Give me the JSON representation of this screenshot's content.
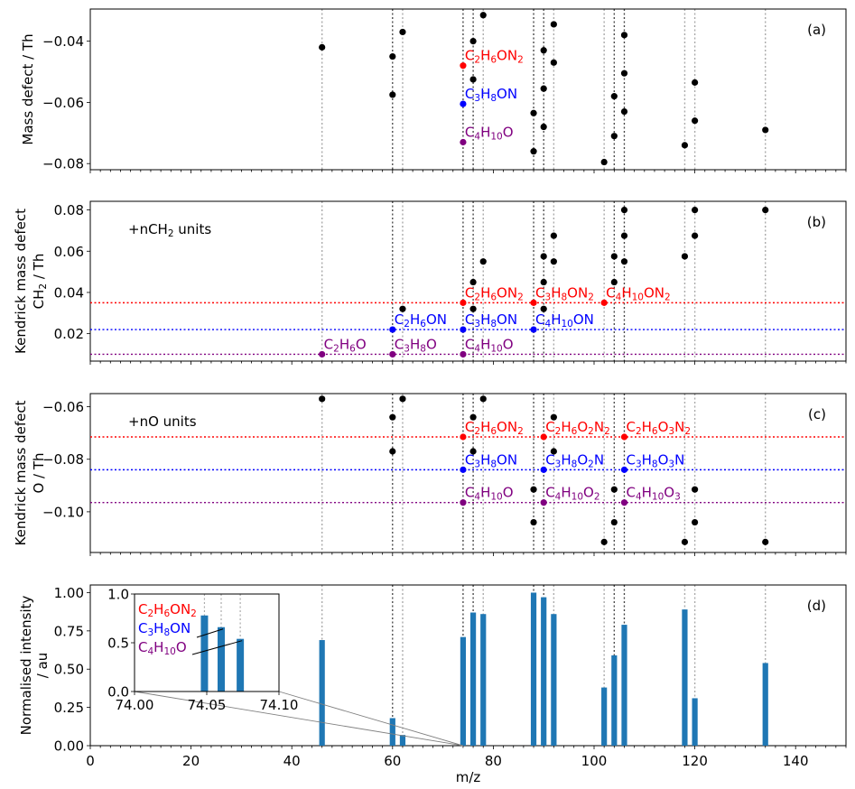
{
  "chart_data": [
    {
      "panel": "(a)",
      "type": "scatter",
      "ylabel": "Mass defect / Th",
      "yticks": [
        -0.04,
        -0.06,
        -0.08
      ],
      "ytick_labels": [
        "−0.04",
        "−0.06",
        "−0.08"
      ],
      "ylim": [
        -0.082,
        -0.0295
      ],
      "points": [
        [
          46,
          -0.042
        ],
        [
          60,
          -0.045
        ],
        [
          60,
          -0.0575
        ],
        [
          62,
          -0.037
        ],
        [
          74,
          -0.048
        ],
        [
          74,
          -0.0605
        ],
        [
          74,
          -0.073
        ],
        [
          76,
          -0.04
        ],
        [
          76,
          -0.0525
        ],
        [
          78,
          -0.0315
        ],
        [
          88,
          -0.0635
        ],
        [
          88,
          -0.076
        ],
        [
          90,
          -0.043
        ],
        [
          90,
          -0.0555
        ],
        [
          90,
          -0.068
        ],
        [
          92,
          -0.0345
        ],
        [
          92,
          -0.047
        ],
        [
          102,
          -0.0795
        ],
        [
          104,
          -0.058
        ],
        [
          104,
          -0.071
        ],
        [
          106,
          -0.038
        ],
        [
          106,
          -0.0505
        ],
        [
          106,
          -0.063
        ],
        [
          118,
          -0.074
        ],
        [
          120,
          -0.0535
        ],
        [
          120,
          -0.066
        ],
        [
          134,
          -0.069
        ]
      ],
      "labeled_points": [
        {
          "x": 74,
          "y": -0.048,
          "label": "C₂H₆ON₂",
          "color": "#ff0000"
        },
        {
          "x": 74,
          "y": -0.0605,
          "label": "C₃H₈ON",
          "color": "#0000ff"
        },
        {
          "x": 74,
          "y": -0.073,
          "label": "C₄H₁₀O",
          "color": "#800080"
        }
      ]
    },
    {
      "panel": "(b)",
      "type": "scatter",
      "ylabel_lines": [
        "Kendrick mass defect",
        "CH₂ / Th"
      ],
      "annotation": "+nCH₂ units",
      "yticks": [
        0.02,
        0.04,
        0.06,
        0.08
      ],
      "ytick_labels": [
        "0.02",
        "0.04",
        "0.06",
        "0.08"
      ],
      "ylim": [
        0.0067,
        0.0842
      ],
      "points": [
        [
          46,
          0.01
        ],
        [
          60,
          0.01
        ],
        [
          60,
          0.022
        ],
        [
          62,
          0.032
        ],
        [
          74,
          0.01
        ],
        [
          74,
          0.022
        ],
        [
          74,
          0.035
        ],
        [
          76,
          0.032
        ],
        [
          76,
          0.045
        ],
        [
          78,
          0.055
        ],
        [
          88,
          0.022
        ],
        [
          88,
          0.035
        ],
        [
          90,
          0.032
        ],
        [
          90,
          0.045
        ],
        [
          90,
          0.0575
        ],
        [
          92,
          0.055
        ],
        [
          92,
          0.0675
        ],
        [
          102,
          0.035
        ],
        [
          104,
          0.045
        ],
        [
          104,
          0.0575
        ],
        [
          106,
          0.055
        ],
        [
          106,
          0.0675
        ],
        [
          106,
          0.08
        ],
        [
          118,
          0.0575
        ],
        [
          120,
          0.0675
        ],
        [
          120,
          0.08
        ],
        [
          134,
          0.08
        ]
      ],
      "hlines": [
        {
          "y": 0.035,
          "color": "#ff0000"
        },
        {
          "y": 0.022,
          "color": "#0000ff"
        },
        {
          "y": 0.01,
          "color": "#800080"
        }
      ],
      "labeled_points": [
        {
          "x": 74,
          "y": 0.035,
          "label": "C₂H₆ON₂",
          "color": "#ff0000"
        },
        {
          "x": 88,
          "y": 0.035,
          "label": "C₃H₈ON₂",
          "color": "#ff0000"
        },
        {
          "x": 102,
          "y": 0.035,
          "label": "C₄H₁₀ON₂",
          "color": "#ff0000"
        },
        {
          "x": 60,
          "y": 0.022,
          "label": "C₂H₆ON",
          "color": "#0000ff"
        },
        {
          "x": 74,
          "y": 0.022,
          "label": "C₃H₈ON",
          "color": "#0000ff"
        },
        {
          "x": 88,
          "y": 0.022,
          "label": "C₄H₁₀ON",
          "color": "#0000ff"
        },
        {
          "x": 46,
          "y": 0.01,
          "label": "C₂H₆O",
          "color": "#800080"
        },
        {
          "x": 60,
          "y": 0.01,
          "label": "C₃H₈O",
          "color": "#800080"
        },
        {
          "x": 74,
          "y": 0.01,
          "label": "C₄H₁₀O",
          "color": "#800080"
        }
      ]
    },
    {
      "panel": "(c)",
      "type": "scatter",
      "ylabel_lines": [
        "Kendrick mass defect",
        "O / Th"
      ],
      "annotation": "+nO units",
      "yticks": [
        -0.06,
        -0.08,
        -0.1
      ],
      "ytick_labels": [
        "−0.06",
        "−0.08",
        "−0.10"
      ],
      "ylim": [
        -0.1155,
        -0.055
      ],
      "points": [
        [
          46,
          -0.057
        ],
        [
          60,
          -0.064
        ],
        [
          60,
          -0.077
        ],
        [
          62,
          -0.057
        ],
        [
          74,
          -0.0715
        ],
        [
          74,
          -0.084
        ],
        [
          74,
          -0.0965
        ],
        [
          76,
          -0.064
        ],
        [
          76,
          -0.077
        ],
        [
          78,
          -0.057
        ],
        [
          88,
          -0.0915
        ],
        [
          88,
          -0.104
        ],
        [
          90,
          -0.0715
        ],
        [
          90,
          -0.084
        ],
        [
          90,
          -0.0965
        ],
        [
          92,
          -0.064
        ],
        [
          92,
          -0.077
        ],
        [
          102,
          -0.1115
        ],
        [
          104,
          -0.0915
        ],
        [
          104,
          -0.104
        ],
        [
          106,
          -0.0715
        ],
        [
          106,
          -0.084
        ],
        [
          106,
          -0.0965
        ],
        [
          118,
          -0.1115
        ],
        [
          120,
          -0.0915
        ],
        [
          120,
          -0.104
        ],
        [
          134,
          -0.1115
        ]
      ],
      "hlines": [
        {
          "y": -0.0715,
          "color": "#ff0000"
        },
        {
          "y": -0.084,
          "color": "#0000ff"
        },
        {
          "y": -0.0965,
          "color": "#800080"
        }
      ],
      "labeled_points": [
        {
          "x": 74,
          "y": -0.0715,
          "label": "C₂H₆ON₂",
          "color": "#ff0000"
        },
        {
          "x": 90,
          "y": -0.0715,
          "label": "C₂H₆O₂N₂",
          "color": "#ff0000"
        },
        {
          "x": 106,
          "y": -0.0715,
          "label": "C₂H₆O₃N₂",
          "color": "#ff0000"
        },
        {
          "x": 74,
          "y": -0.084,
          "label": "C₃H₈ON",
          "color": "#0000ff"
        },
        {
          "x": 90,
          "y": -0.084,
          "label": "C₃H₈O₂N",
          "color": "#0000ff"
        },
        {
          "x": 106,
          "y": -0.084,
          "label": "C₃H₈O₃N",
          "color": "#0000ff"
        },
        {
          "x": 74,
          "y": -0.0965,
          "label": "C₄H₁₀O",
          "color": "#800080"
        },
        {
          "x": 90,
          "y": -0.0965,
          "label": "C₄H₁₀O₂",
          "color": "#800080"
        },
        {
          "x": 106,
          "y": -0.0965,
          "label": "C₄H₁₀O₃",
          "color": "#800080"
        }
      ]
    },
    {
      "panel": "(d)",
      "type": "bar",
      "ylabel_lines": [
        "Normalised intensity",
        "/ au"
      ],
      "xlabel": "m/z",
      "xlim": [
        0,
        150
      ],
      "xticks": [
        0,
        20,
        40,
        60,
        80,
        100,
        120,
        140
      ],
      "xtick_labels": [
        "0",
        "20",
        "40",
        "60",
        "80",
        "100",
        "120",
        "140"
      ],
      "yticks": [
        0.0,
        0.25,
        0.5,
        0.75,
        1.0
      ],
      "ytick_labels": [
        "0.00",
        "0.25",
        "0.50",
        "0.75",
        "1.00"
      ],
      "ylim": [
        0,
        1.05
      ],
      "bars": [
        [
          46,
          0.69
        ],
        [
          60,
          0.18
        ],
        [
          62,
          0.07
        ],
        [
          74,
          0.71
        ],
        [
          76,
          0.87
        ],
        [
          78,
          0.86
        ],
        [
          88,
          1.0
        ],
        [
          90,
          0.97
        ],
        [
          92,
          0.86
        ],
        [
          102,
          0.38
        ],
        [
          104,
          0.59
        ],
        [
          106,
          0.79
        ],
        [
          118,
          0.89
        ],
        [
          120,
          0.31
        ],
        [
          134,
          0.54
        ]
      ],
      "inset": {
        "xlim": [
          74.0,
          74.1
        ],
        "ylim": [
          0,
          1.0
        ],
        "xticks": [
          74.0,
          74.05,
          74.1
        ],
        "xtick_labels": [
          "74.00",
          "74.05",
          "74.10"
        ],
        "yticks": [
          0,
          0.5,
          1.0
        ],
        "ytick_labels": [
          "0.0",
          "0.5",
          "1.0"
        ],
        "bars": [
          [
            74.0484,
            0.78
          ],
          [
            74.06,
            0.66
          ],
          [
            74.0732,
            0.54
          ]
        ],
        "labels": [
          {
            "text": "C₂H₆ON₂",
            "color": "#ff0000",
            "target_x": 74.0484,
            "target_y": 0.78
          },
          {
            "text": "C₃H₈ON",
            "color": "#0000ff",
            "target_x": 74.06,
            "target_y": 0.66
          },
          {
            "text": "C₄H₁₀O",
            "color": "#800080",
            "target_x": 74.0732,
            "target_y": 0.54
          }
        ]
      }
    }
  ],
  "vlines_gray": [
    46,
    60,
    62,
    74,
    76,
    78,
    88,
    90,
    92,
    102,
    104,
    106,
    118,
    120,
    134
  ],
  "vlines_dark": [
    60,
    74,
    76,
    88,
    90,
    104,
    106
  ],
  "colors": {
    "bar": "#1f77b4",
    "point": "#000000",
    "vline_gray": "#aaaaaa",
    "vline_dark": "#444444"
  }
}
